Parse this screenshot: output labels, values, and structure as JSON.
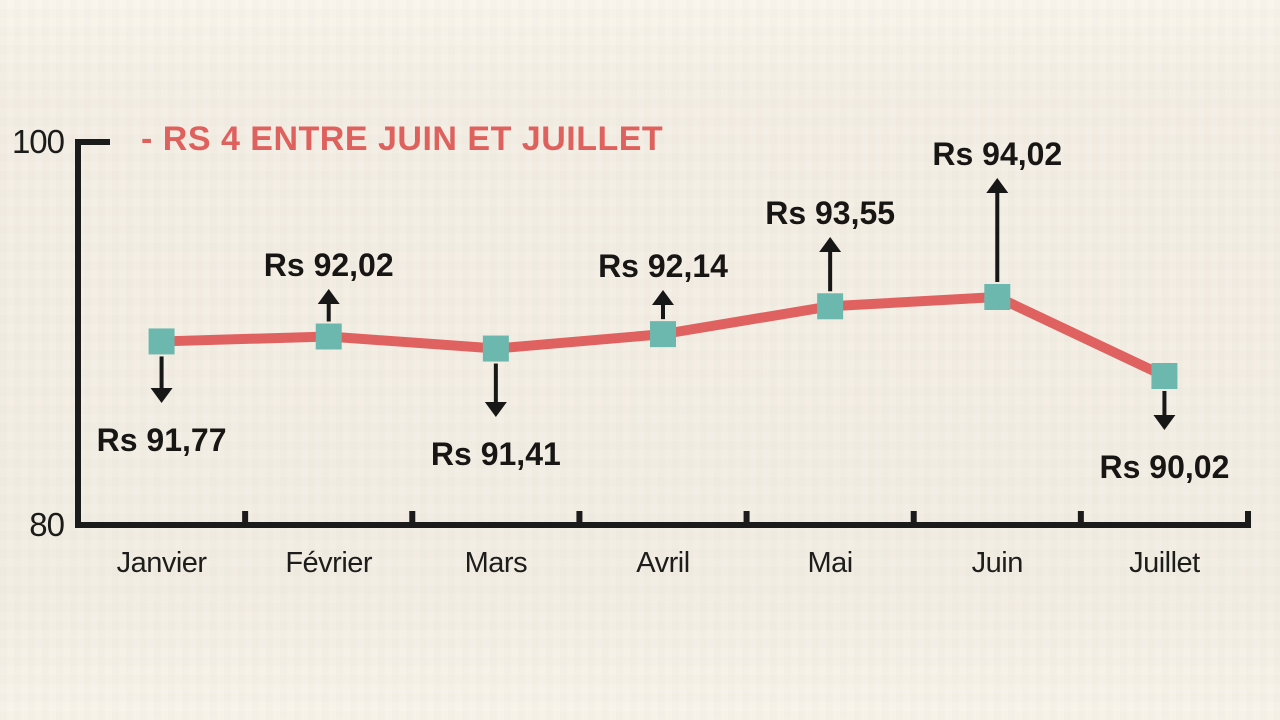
{
  "chart_data": {
    "type": "line",
    "title": "- RS 4 ENTRE JUIN ET JUILLET",
    "title_color": "#df615e",
    "categories": [
      "Janvier",
      "Février",
      "Mars",
      "Avril",
      "Mai",
      "Juin",
      "Juillet"
    ],
    "values": [
      91.77,
      92.02,
      91.41,
      92.14,
      93.55,
      94.02,
      90.02
    ],
    "point_labels": [
      "Rs 91,77",
      "Rs 92,02",
      "Rs 91,41",
      "Rs 92,14",
      "Rs 93,55",
      "Rs 94,02",
      "Rs 90,02"
    ],
    "label_side": [
      "below",
      "above",
      "below",
      "above",
      "above",
      "above",
      "below"
    ],
    "currency": "Rs",
    "y_axis": {
      "ticks": [
        "100",
        "80"
      ],
      "min": 80,
      "max": 100
    },
    "x_axis_label": "",
    "y_axis_label": "",
    "grid": false,
    "legend": "none",
    "colors": {
      "line": "#e06260",
      "marker": "#6cb8af",
      "axis": "#1b1b1b",
      "arrow": "#171717",
      "text": "#171614",
      "background": "#f5f0e7"
    },
    "marker_shape": "square"
  }
}
